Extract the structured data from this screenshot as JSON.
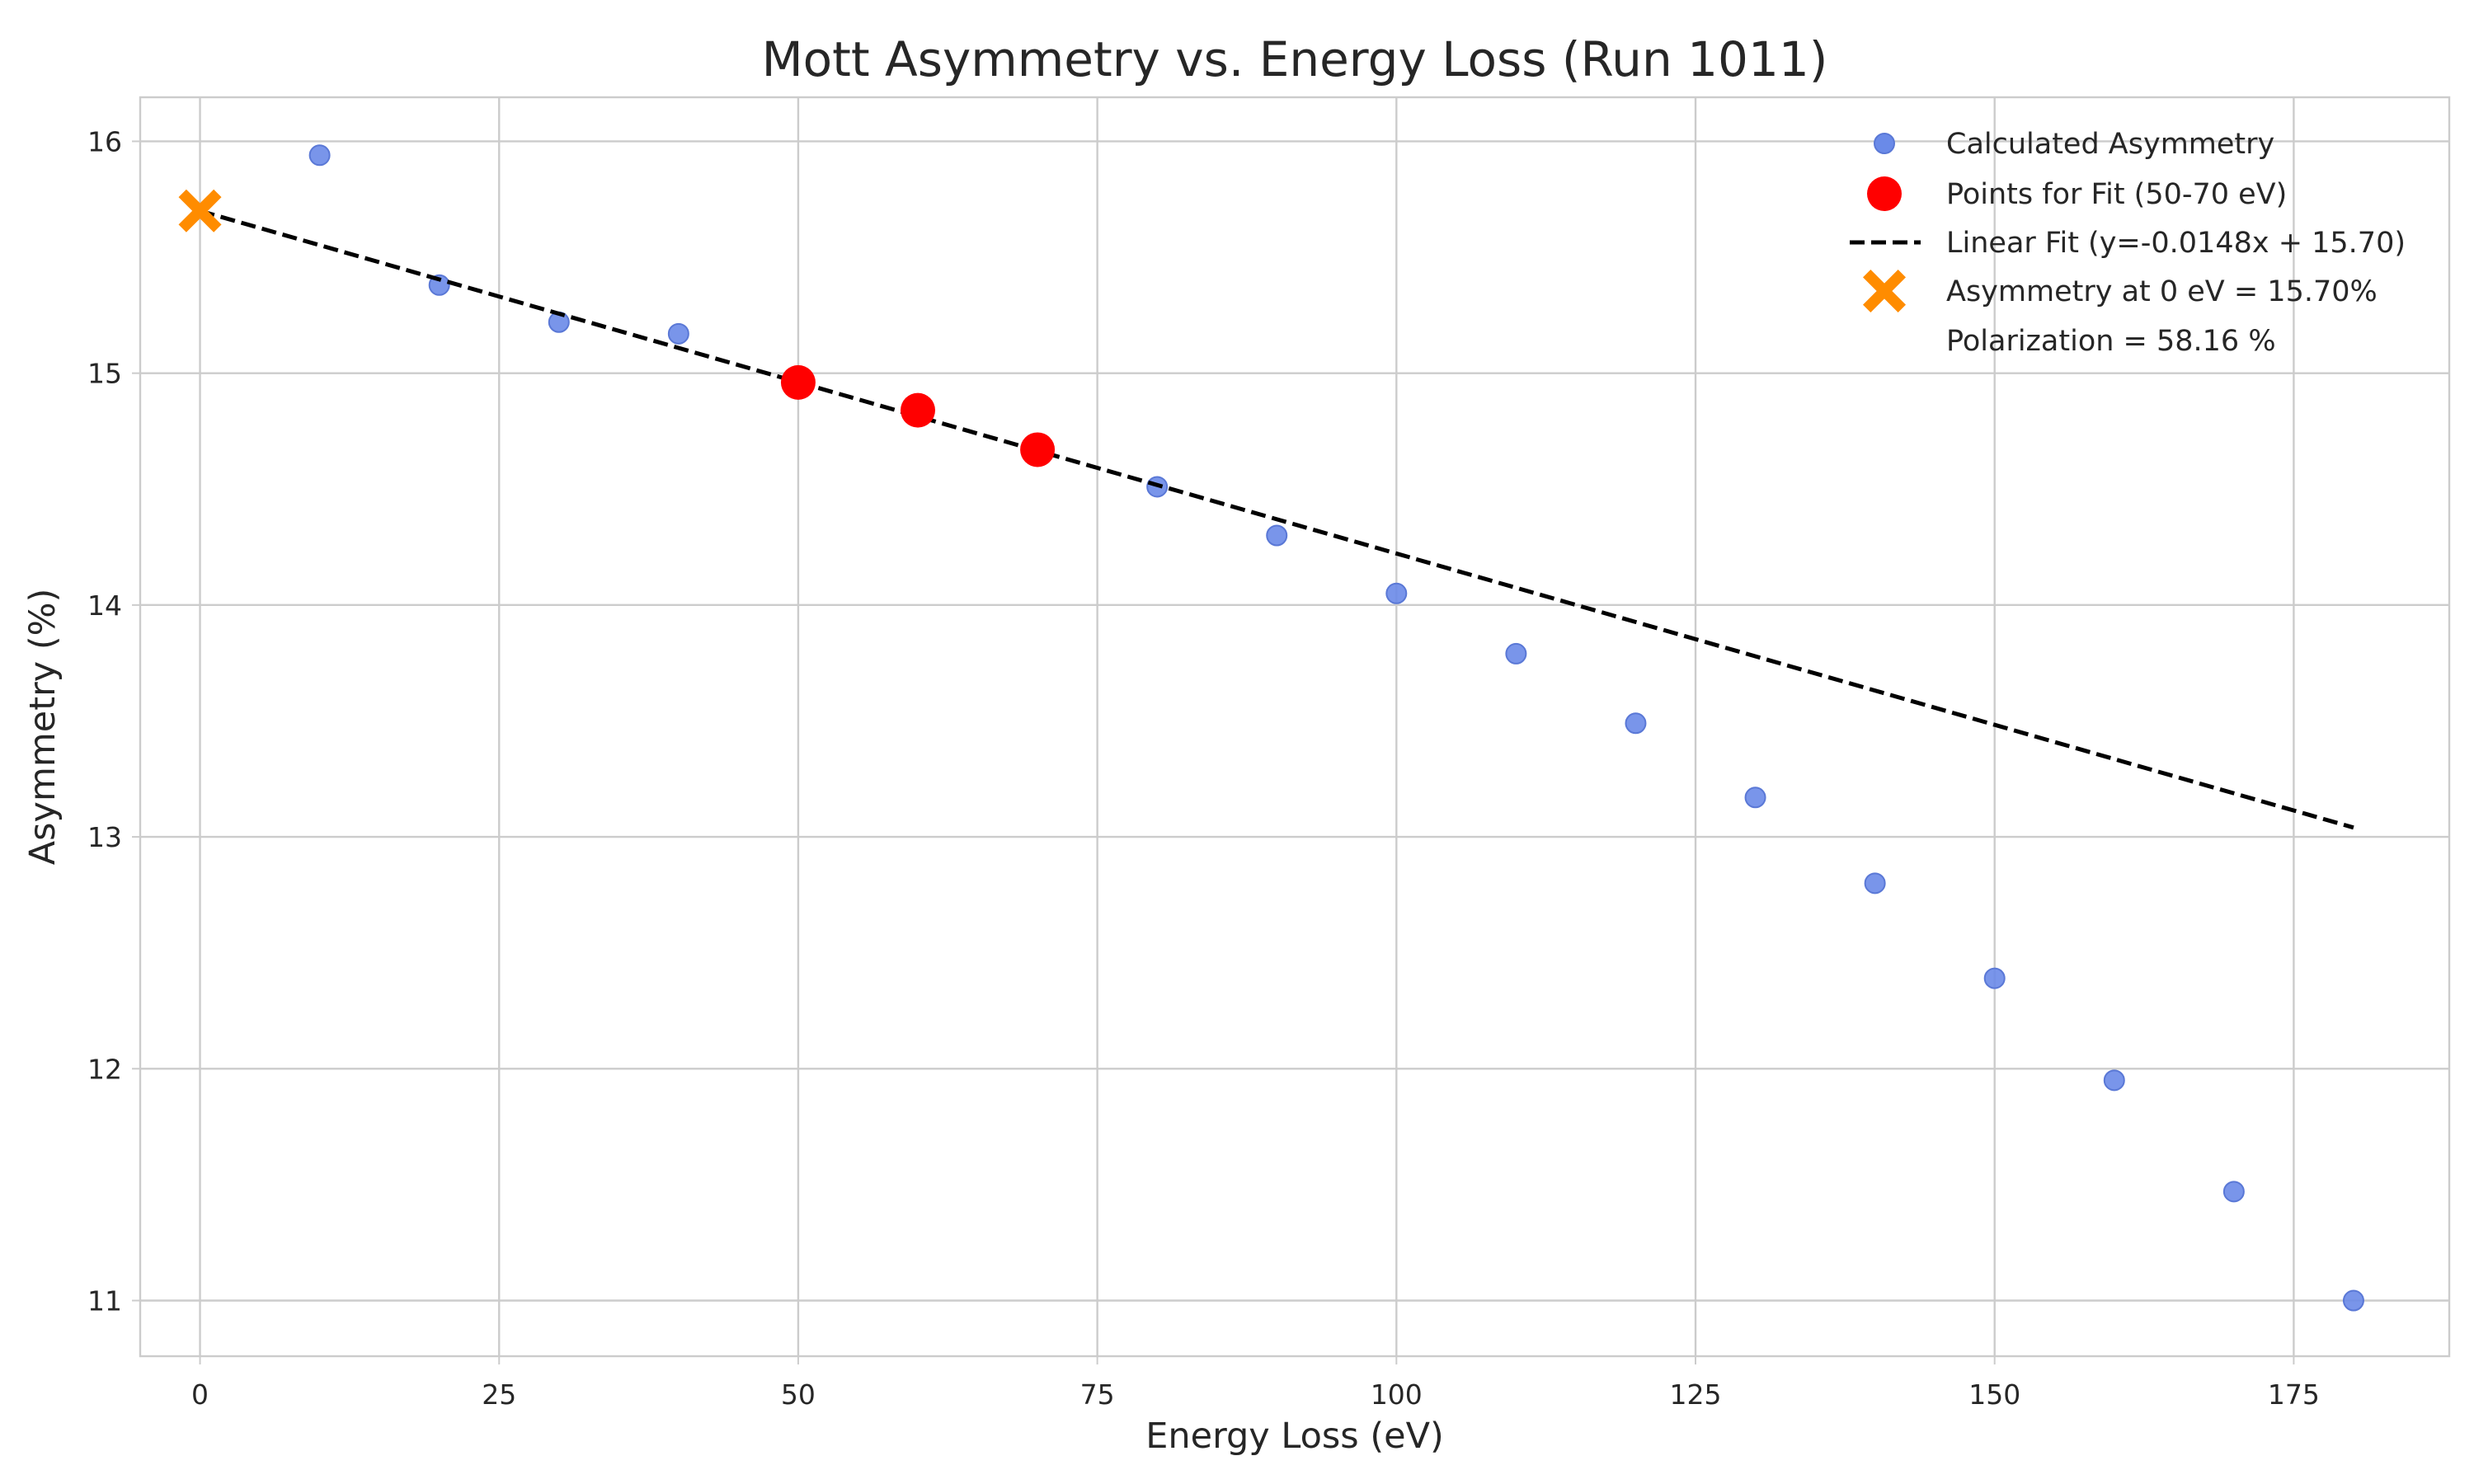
{
  "chart_data": {
    "type": "scatter",
    "title": "Mott Asymmetry vs. Energy Loss (Run 1011)",
    "xlabel": "Energy Loss (eV)",
    "ylabel": "Asymmetry (%)",
    "xlim": [
      -5,
      188
    ],
    "ylim": [
      10.76,
      16.19
    ],
    "xticks": [
      0,
      25,
      50,
      75,
      100,
      125,
      150,
      175
    ],
    "yticks": [
      11,
      12,
      13,
      14,
      15,
      16
    ],
    "grid": true,
    "legend_position": "top-right",
    "series": [
      {
        "name": "Calculated Asymmetry",
        "kind": "scatter",
        "color": "#6a8ae8",
        "x": [
          10,
          20,
          30,
          40,
          50,
          60,
          70,
          80,
          90,
          100,
          110,
          120,
          130,
          140,
          150,
          160,
          170,
          180
        ],
        "y": [
          15.94,
          15.38,
          15.22,
          15.17,
          14.96,
          14.84,
          14.67,
          14.51,
          14.3,
          14.05,
          13.79,
          13.49,
          13.17,
          12.8,
          12.39,
          11.95,
          11.47,
          11.0
        ]
      },
      {
        "name": "Points for Fit (50-70 eV)",
        "kind": "scatter",
        "color": "#ff0000",
        "x": [
          50,
          60,
          70
        ],
        "y": [
          14.96,
          14.84,
          14.67
        ]
      },
      {
        "name": "Linear Fit (y=-0.0148x + 15.70)",
        "kind": "line",
        "style": "dashed",
        "color": "#000000",
        "slope": -0.0148,
        "intercept": 15.7,
        "x": [
          0,
          180
        ],
        "y": [
          15.7,
          13.04
        ]
      },
      {
        "name": "Asymmetry at 0 eV = 15.70%",
        "kind": "marker-x",
        "color": "#ff8c00",
        "x": [
          0
        ],
        "y": [
          15.7
        ]
      }
    ],
    "legend_extra_text": "Polarization = 58.16 %"
  }
}
